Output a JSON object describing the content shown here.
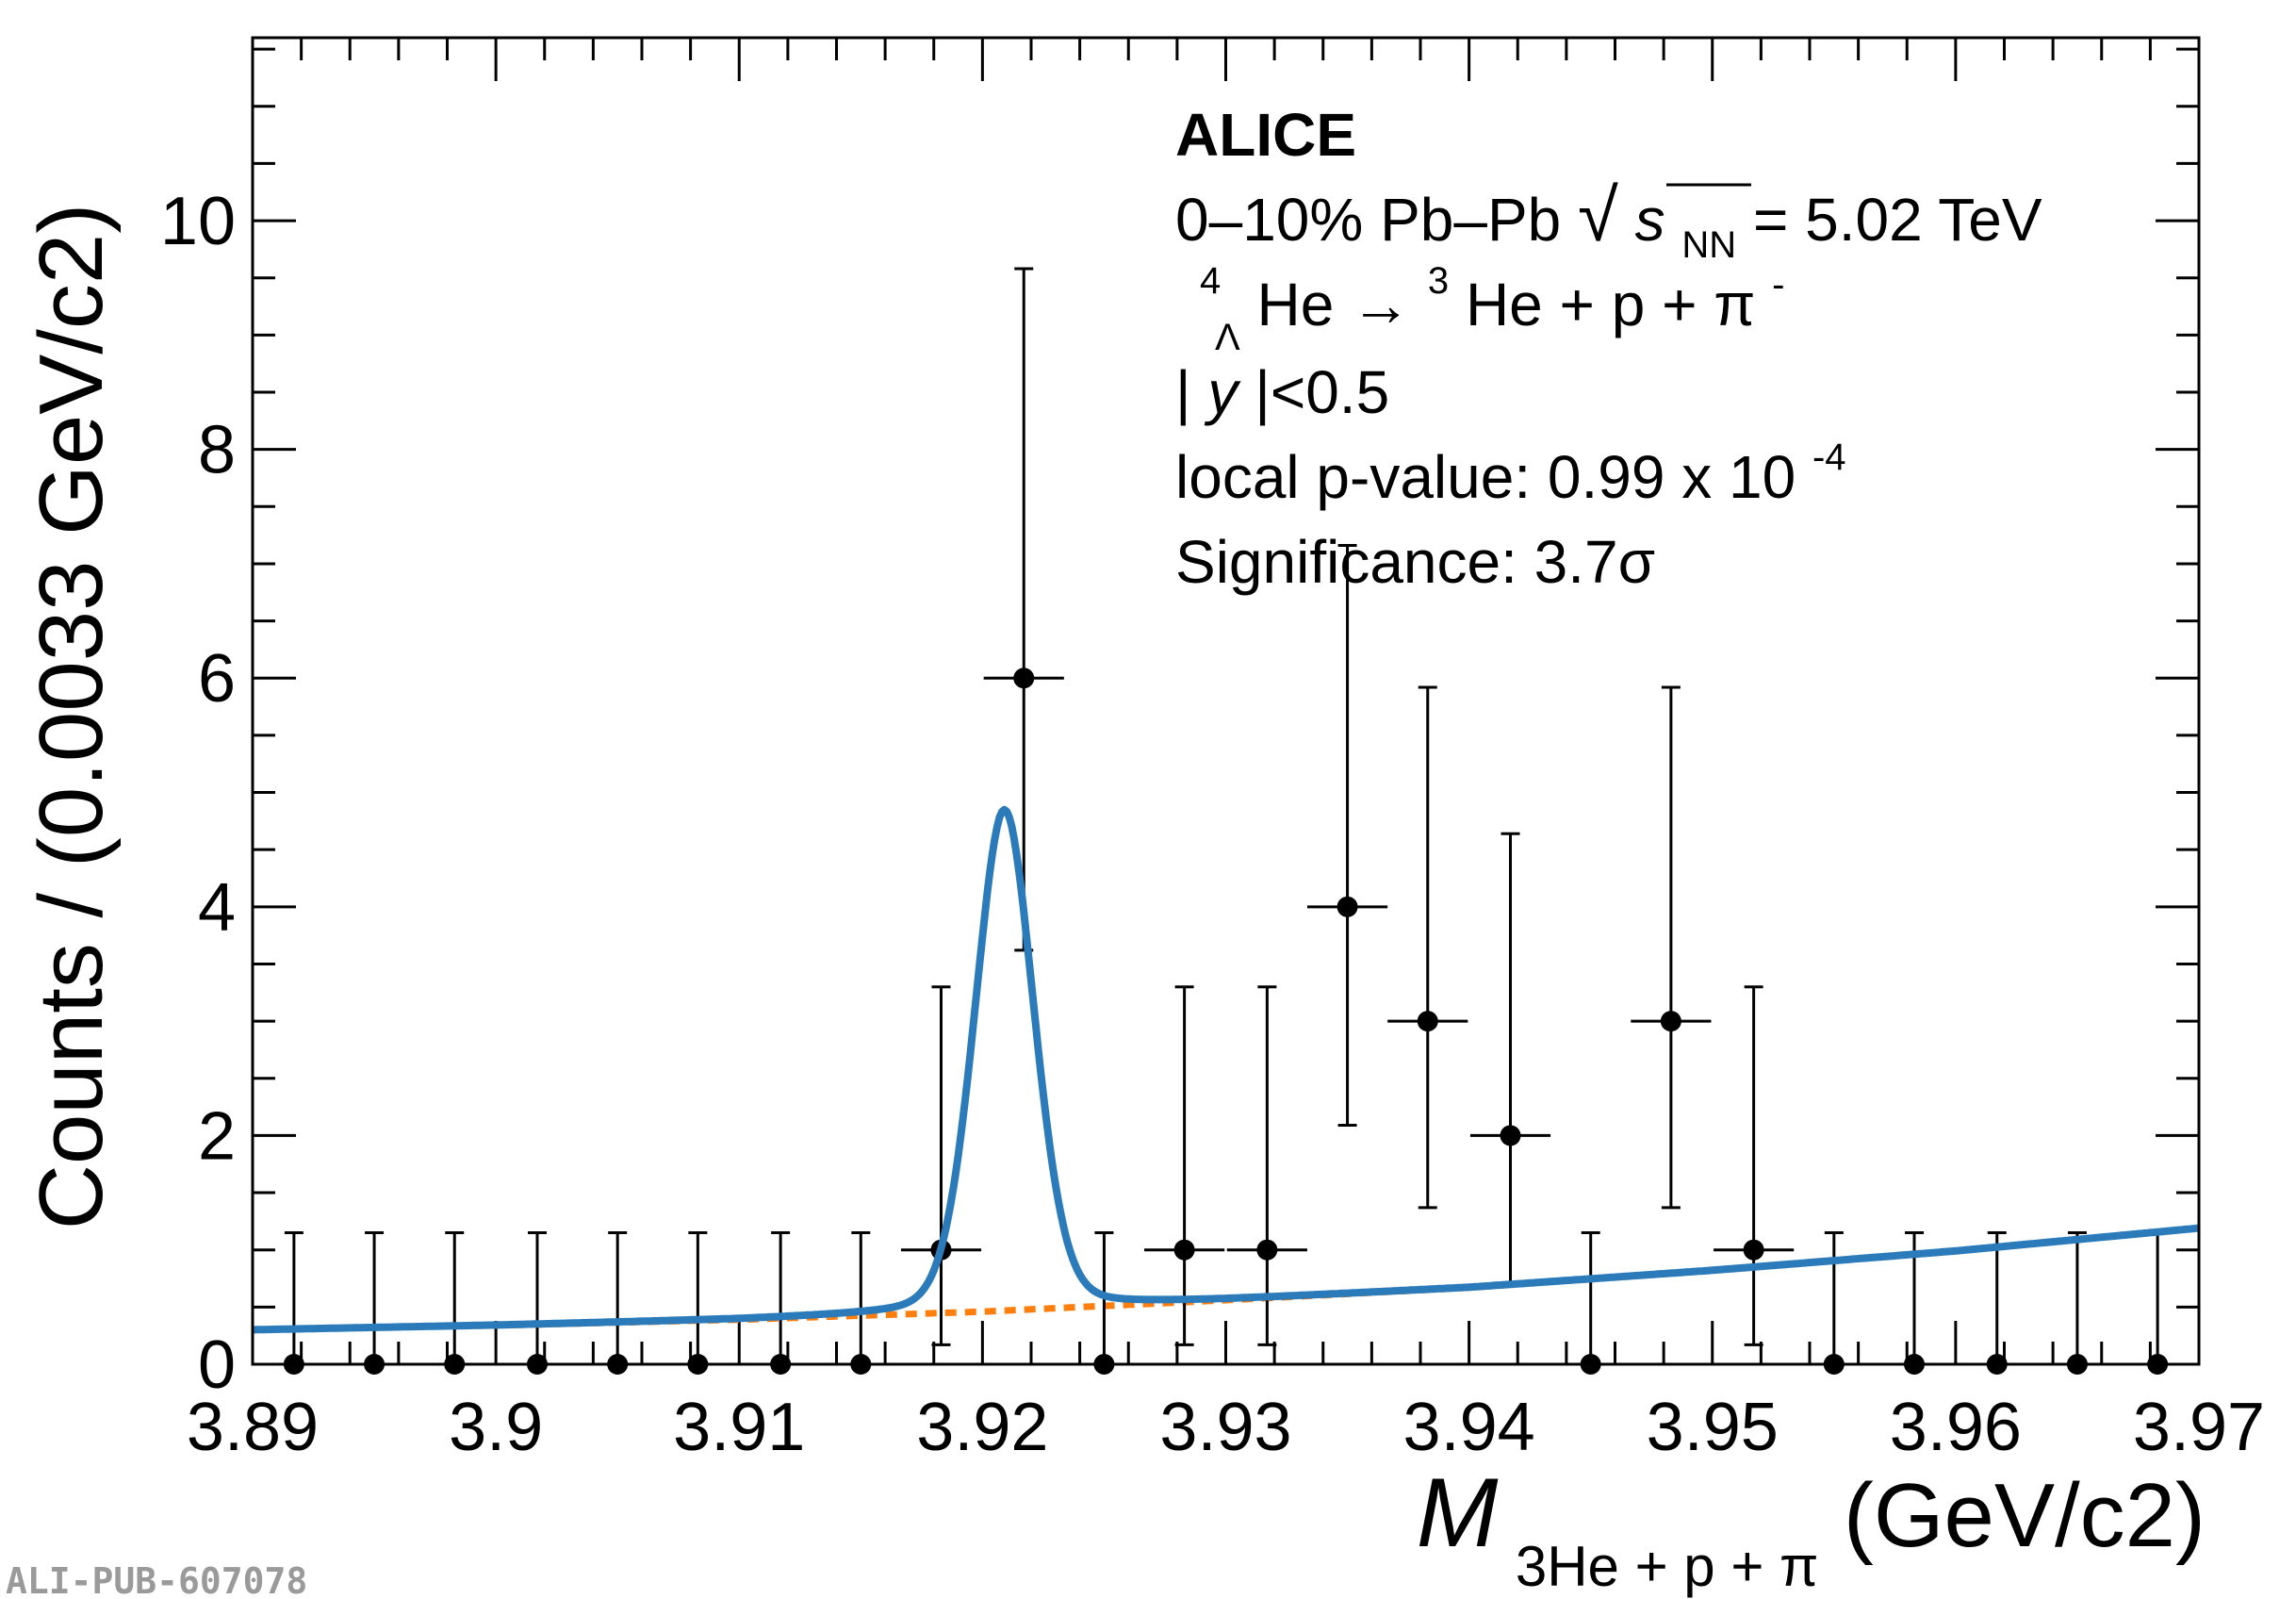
{
  "chart_data": {
    "type": "scatter",
    "xlabel": {
      "main": "M",
      "sub": "3He + p + π",
      "unit": "(GeV/c2)"
    },
    "ylabel": "Counts / (0.0033 GeV/c2)",
    "xlim": [
      3.89,
      3.97
    ],
    "ylim": [
      0,
      11.6
    ],
    "x_ticks": [
      "3.89",
      "3.9",
      "3.91",
      "3.92",
      "3.93",
      "3.94",
      "3.95",
      "3.96",
      "3.97"
    ],
    "y_ticks": [
      "0",
      "2",
      "4",
      "6",
      "8",
      "10"
    ],
    "grid": false,
    "bin_width": 0.0033,
    "series": [
      {
        "kind": "data",
        "marker": "filled-circle",
        "color": "#000000",
        "points": [
          {
            "x": 3.8917,
            "y": 0,
            "err_low": 0,
            "err_high": 1.15
          },
          {
            "x": 3.895,
            "y": 0,
            "err_low": 0,
            "err_high": 1.15
          },
          {
            "x": 3.8983,
            "y": 0,
            "err_low": 0,
            "err_high": 1.15
          },
          {
            "x": 3.9017,
            "y": 0,
            "err_low": 0,
            "err_high": 1.15
          },
          {
            "x": 3.905,
            "y": 0,
            "err_low": 0,
            "err_high": 1.15
          },
          {
            "x": 3.9083,
            "y": 0,
            "err_low": 0,
            "err_high": 1.15
          },
          {
            "x": 3.9117,
            "y": 0,
            "err_low": 0,
            "err_high": 1.15
          },
          {
            "x": 3.915,
            "y": 0,
            "err_low": 0,
            "err_high": 1.15
          },
          {
            "x": 3.9183,
            "y": 1,
            "err_low": 0.83,
            "err_high": 2.3
          },
          {
            "x": 3.9217,
            "y": 6,
            "err_low": 2.38,
            "err_high": 3.58
          },
          {
            "x": 3.925,
            "y": 0,
            "err_low": 0,
            "err_high": 1.15
          },
          {
            "x": 3.9283,
            "y": 1,
            "err_low": 0.83,
            "err_high": 2.3
          },
          {
            "x": 3.9317,
            "y": 1,
            "err_low": 0.83,
            "err_high": 2.3
          },
          {
            "x": 3.935,
            "y": 4,
            "err_low": 1.91,
            "err_high": 3.16
          },
          {
            "x": 3.9383,
            "y": 3,
            "err_low": 1.63,
            "err_high": 2.92
          },
          {
            "x": 3.9417,
            "y": 2,
            "err_low": 1.29,
            "err_high": 2.64
          },
          {
            "x": 3.945,
            "y": 0,
            "err_low": 0,
            "err_high": 1.15
          },
          {
            "x": 3.9483,
            "y": 3,
            "err_low": 1.63,
            "err_high": 2.92
          },
          {
            "x": 3.9517,
            "y": 1,
            "err_low": 0.83,
            "err_high": 2.3
          },
          {
            "x": 3.955,
            "y": 0,
            "err_low": 0,
            "err_high": 1.15
          },
          {
            "x": 3.9583,
            "y": 0,
            "err_low": 0,
            "err_high": 1.15
          },
          {
            "x": 3.9617,
            "y": 0,
            "err_low": 0,
            "err_high": 1.15
          },
          {
            "x": 3.965,
            "y": 0,
            "err_low": 0,
            "err_high": 1.15
          },
          {
            "x": 3.9683,
            "y": 0,
            "err_low": 0,
            "err_high": 1.15
          }
        ]
      },
      {
        "kind": "fit",
        "style": "solid",
        "color": "#2b7bba",
        "peak": {
          "mean": 3.9209,
          "sigma": 0.00125,
          "amplitude": 4.38
        }
      },
      {
        "kind": "background",
        "style": "dotted",
        "color": "#ff7f0e",
        "x": [
          3.89,
          3.9,
          3.91,
          3.92,
          3.93,
          3.94,
          3.95,
          3.96,
          3.97
        ],
        "y": [
          0.3,
          0.34,
          0.39,
          0.46,
          0.56,
          0.67,
          0.82,
          0.99,
          1.19
        ]
      }
    ],
    "annotations": {
      "experiment": "ALICE",
      "line1": {
        "text": "0–10% Pb–Pb ",
        "sqrt": "√",
        "s": "s",
        "sub": "NN",
        "rest": " = 5.02 TeV"
      },
      "line2": {
        "pre_sup": "4",
        "pre_sub": "Λ",
        "nucleus": "He → ",
        "sup3": "3",
        "rest": "He + p + π",
        "sup": "-"
      },
      "line3": {
        "open": "|",
        "var": "y",
        "rest": "|<0.5"
      },
      "line4": {
        "text": "local p-value: 0.99 x 10",
        "sup": "-4"
      },
      "line5": "Significance: 3.7σ"
    },
    "footer": "ALI-PUB-607078"
  }
}
